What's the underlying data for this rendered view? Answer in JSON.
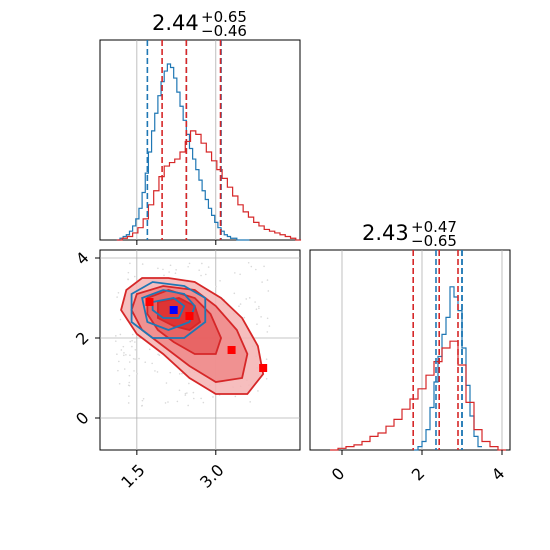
{
  "chart_data": [
    {
      "type": "histogram",
      "panel": "x-marginal",
      "title": {
        "value": "2.44",
        "plus": "+0.65",
        "minus": "−0.46"
      },
      "xlim": [
        0.8,
        4.6
      ],
      "grid": true,
      "colors": {
        "blue": "#1f77b4",
        "red": "#d62728"
      },
      "quantile_lines": {
        "blue": [
          1.7,
          2.44,
          3.1
        ],
        "red": [
          1.98,
          2.44,
          3.09
        ]
      },
      "series": [
        {
          "color": "blue",
          "bins": [
            1.12,
            1.18,
            1.24,
            1.3,
            1.36,
            1.42,
            1.48,
            1.54,
            1.6,
            1.66,
            1.72,
            1.78,
            1.84,
            1.9,
            1.96,
            2.02,
            2.08,
            2.14,
            2.2,
            2.26,
            2.32,
            2.38,
            2.44,
            2.5,
            2.56,
            2.62,
            2.68,
            2.74,
            2.8,
            2.86,
            2.92,
            2.98,
            3.04,
            3.1,
            3.16,
            3.22,
            3.28,
            3.34,
            3.4,
            3.46,
            3.52,
            3.58
          ],
          "density": [
            0.0,
            0.01,
            0.02,
            0.03,
            0.05,
            0.08,
            0.12,
            0.18,
            0.27,
            0.38,
            0.5,
            0.62,
            0.72,
            0.82,
            0.9,
            0.96,
            1.0,
            0.98,
            0.92,
            0.84,
            0.76,
            0.68,
            0.6,
            0.52,
            0.46,
            0.4,
            0.34,
            0.28,
            0.23,
            0.18,
            0.14,
            0.1,
            0.07,
            0.05,
            0.03,
            0.02,
            0.01,
            0.01,
            0.0,
            0.0,
            0.0,
            0.0
          ]
        },
        {
          "color": "red",
          "bins": [
            1.12,
            1.22,
            1.32,
            1.42,
            1.52,
            1.62,
            1.72,
            1.82,
            1.92,
            2.02,
            2.12,
            2.22,
            2.32,
            2.42,
            2.52,
            2.62,
            2.72,
            2.82,
            2.92,
            3.02,
            3.12,
            3.22,
            3.32,
            3.42,
            3.52,
            3.62,
            3.72,
            3.82,
            3.92,
            4.02,
            4.12,
            4.22,
            4.32,
            4.42,
            4.52
          ],
          "density": [
            0.0,
            0.01,
            0.02,
            0.04,
            0.07,
            0.12,
            0.2,
            0.28,
            0.36,
            0.42,
            0.44,
            0.46,
            0.5,
            0.56,
            0.62,
            0.6,
            0.55,
            0.5,
            0.45,
            0.4,
            0.35,
            0.3,
            0.25,
            0.2,
            0.16,
            0.13,
            0.1,
            0.08,
            0.06,
            0.05,
            0.04,
            0.03,
            0.02,
            0.01,
            0.0
          ]
        }
      ]
    },
    {
      "type": "contour",
      "panel": "joint",
      "xlim": [
        0.8,
        4.6
      ],
      "ylim": [
        -0.8,
        4.2
      ],
      "x_ticks": [
        "1.5",
        "3.0"
      ],
      "y_ticks": [
        "0",
        "2",
        "4"
      ],
      "grid": true,
      "red_contours": [
        [
          [
            1.3,
            3.2
          ],
          [
            1.6,
            3.5
          ],
          [
            2.1,
            3.5
          ],
          [
            2.6,
            3.4
          ],
          [
            3.1,
            3.0
          ],
          [
            3.5,
            2.5
          ],
          [
            3.8,
            1.8
          ],
          [
            3.9,
            1.1
          ],
          [
            3.6,
            0.6
          ],
          [
            3.0,
            0.6
          ],
          [
            2.5,
            1.0
          ],
          [
            2.0,
            1.6
          ],
          [
            1.5,
            2.1
          ],
          [
            1.2,
            2.7
          ]
        ],
        [
          [
            1.5,
            3.1
          ],
          [
            2.0,
            3.3
          ],
          [
            2.6,
            3.2
          ],
          [
            3.0,
            2.8
          ],
          [
            3.4,
            2.2
          ],
          [
            3.6,
            1.6
          ],
          [
            3.5,
            1.0
          ],
          [
            3.0,
            0.9
          ],
          [
            2.5,
            1.3
          ],
          [
            2.0,
            1.8
          ],
          [
            1.6,
            2.2
          ],
          [
            1.4,
            2.7
          ]
        ],
        [
          [
            1.7,
            3.0
          ],
          [
            2.1,
            3.2
          ],
          [
            2.6,
            3.0
          ],
          [
            2.9,
            2.6
          ],
          [
            3.1,
            2.0
          ],
          [
            3.0,
            1.6
          ],
          [
            2.6,
            1.6
          ],
          [
            2.2,
            1.9
          ],
          [
            1.9,
            2.2
          ],
          [
            1.7,
            2.6
          ]
        ],
        [
          [
            1.9,
            2.9
          ],
          [
            2.3,
            3.0
          ],
          [
            2.6,
            2.8
          ],
          [
            2.7,
            2.4
          ],
          [
            2.5,
            2.2
          ],
          [
            2.2,
            2.3
          ],
          [
            1.9,
            2.5
          ]
        ]
      ],
      "blue_contours": [
        [
          [
            1.4,
            3.1
          ],
          [
            1.8,
            3.4
          ],
          [
            2.4,
            3.3
          ],
          [
            2.8,
            3.0
          ],
          [
            2.8,
            2.4
          ],
          [
            2.4,
            2.0
          ],
          [
            1.8,
            2.0
          ],
          [
            1.4,
            2.4
          ]
        ],
        [
          [
            1.6,
            3.0
          ],
          [
            2.0,
            3.2
          ],
          [
            2.4,
            3.1
          ],
          [
            2.6,
            2.8
          ],
          [
            2.5,
            2.4
          ],
          [
            2.1,
            2.2
          ],
          [
            1.7,
            2.4
          ]
        ],
        [
          [
            1.8,
            2.9
          ],
          [
            2.2,
            3.0
          ],
          [
            2.4,
            2.8
          ],
          [
            2.3,
            2.5
          ],
          [
            2.0,
            2.5
          ],
          [
            1.8,
            2.7
          ]
        ]
      ],
      "markers": {
        "blue": [
          {
            "x": 2.2,
            "y": 2.7
          }
        ],
        "red": [
          {
            "x": 1.74,
            "y": 2.9
          },
          {
            "x": 2.5,
            "y": 2.55
          },
          {
            "x": 3.3,
            "y": 1.7
          },
          {
            "x": 3.9,
            "y": 1.25
          }
        ]
      },
      "scatter_hint": "light gray background points around main mass"
    },
    {
      "type": "histogram",
      "panel": "y-marginal",
      "title": {
        "value": "2.43",
        "plus": "+0.47",
        "minus": "−0.65"
      },
      "xlim": [
        -0.8,
        4.2
      ],
      "x_ticks": [
        "0",
        "2",
        "4"
      ],
      "grid": true,
      "quantile_lines": {
        "blue": [
          2.35,
          3.0,
          3.0
        ],
        "red": [
          1.78,
          2.43,
          2.9
        ]
      },
      "series": [
        {
          "color": "blue",
          "bins": [
            1.8,
            1.9,
            2.0,
            2.1,
            2.2,
            2.3,
            2.4,
            2.5,
            2.6,
            2.7,
            2.8,
            2.9,
            3.0,
            3.1,
            3.2,
            3.3,
            3.4
          ],
          "density": [
            0.0,
            0.02,
            0.05,
            0.12,
            0.25,
            0.4,
            0.55,
            0.68,
            0.78,
            0.96,
            0.9,
            0.82,
            0.6,
            0.38,
            0.2,
            0.08,
            0.02
          ]
        },
        {
          "color": "red",
          "bins": [
            -0.3,
            -0.1,
            0.1,
            0.3,
            0.5,
            0.7,
            0.9,
            1.1,
            1.3,
            1.5,
            1.7,
            1.9,
            2.1,
            2.3,
            2.5,
            2.7,
            2.9,
            3.1,
            3.3,
            3.5,
            3.7,
            3.9
          ],
          "density": [
            0.0,
            0.01,
            0.02,
            0.03,
            0.05,
            0.08,
            0.1,
            0.14,
            0.18,
            0.24,
            0.3,
            0.36,
            0.44,
            0.52,
            0.6,
            0.64,
            0.5,
            0.28,
            0.12,
            0.05,
            0.02,
            0.0
          ]
        }
      ]
    }
  ]
}
